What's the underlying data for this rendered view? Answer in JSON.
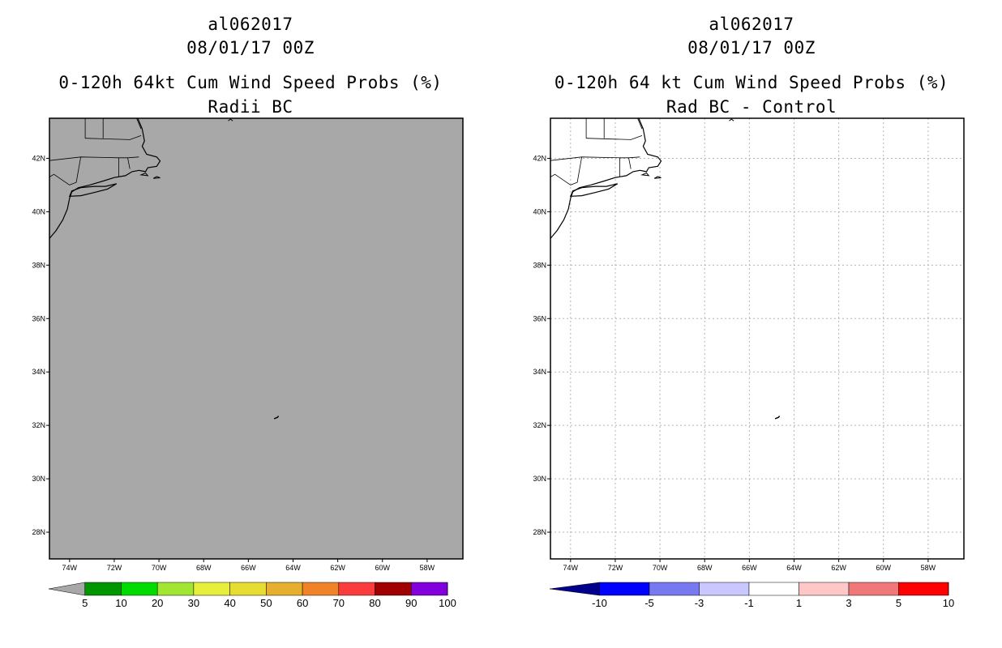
{
  "panels": [
    {
      "id": "left",
      "storm_id": "al062017",
      "datetime": "08/01/17 00Z",
      "title": "0-120h 64kt Cum Wind Speed Probs (%)",
      "subtitle": "Radii BC",
      "background": "#a8a8a8",
      "gridlines": false,
      "colorbar": {
        "colors": [
          "#009600",
          "#00dc00",
          "#a0e632",
          "#e6f03c",
          "#e6dc32",
          "#e6af2d",
          "#f08228",
          "#fa3c3c",
          "#a00000",
          "#8200dc"
        ],
        "end_colors": [
          "#a8a8a8",
          "#a8a8a8"
        ],
        "labels": [
          "5",
          "10",
          "20",
          "30",
          "40",
          "50",
          "60",
          "70",
          "80",
          "90",
          "100"
        ]
      }
    },
    {
      "id": "right",
      "storm_id": "al062017",
      "datetime": "08/01/17 00Z",
      "title": "0-120h 64 kt Cum Wind Speed Probs (%)",
      "subtitle": "Rad BC - Control",
      "background": "#ffffff",
      "gridlines": true,
      "colorbar": {
        "colors": [
          "#0000ff",
          "#7878f0",
          "#c8c8ff",
          "#ffffff",
          "#ffc8c8",
          "#f07878",
          "#ff0000"
        ],
        "end_colors": [
          "#00008c",
          "#8c0000"
        ],
        "labels": [
          "-10",
          "-5",
          "-3",
          "-1",
          "1",
          "3",
          "5",
          "10"
        ]
      }
    }
  ],
  "axes": {
    "lon_ticks": [
      -74,
      -72,
      -70,
      -68,
      -66,
      -64,
      -62,
      -60,
      -58
    ],
    "lon_labels": [
      "74W",
      "72W",
      "70W",
      "68W",
      "66W",
      "64W",
      "62W",
      "60W",
      "58W"
    ],
    "lat_ticks": [
      42,
      40,
      38,
      36,
      34,
      32,
      30,
      28
    ],
    "lat_labels": [
      "42N",
      "40N",
      "38N",
      "36N",
      "34N",
      "32N",
      "30N",
      "28N"
    ],
    "lon_range": [
      -74.9,
      -56.4
    ],
    "lat_range": [
      27.0,
      43.5
    ]
  },
  "map_features": {
    "coastline": [
      [
        -74.9,
        39.0
      ],
      [
        -74.6,
        39.3
      ],
      [
        -74.3,
        39.7
      ],
      [
        -74.1,
        40.1
      ],
      [
        -74.0,
        40.5
      ],
      [
        -73.9,
        40.75
      ],
      [
        -73.6,
        40.9
      ],
      [
        -73.1,
        41.0
      ],
      [
        -72.5,
        41.15
      ],
      [
        -72.0,
        41.28
      ],
      [
        -71.5,
        41.35
      ],
      [
        -71.2,
        41.5
      ],
      [
        -70.9,
        41.55
      ],
      [
        -70.6,
        41.5
      ],
      [
        -70.5,
        41.65
      ],
      [
        -70.1,
        41.7
      ],
      [
        -69.95,
        41.9
      ],
      [
        -70.1,
        42.05
      ],
      [
        -70.55,
        42.15
      ],
      [
        -70.75,
        42.45
      ],
      [
        -70.65,
        42.65
      ],
      [
        -70.75,
        43.1
      ],
      [
        -70.95,
        43.5
      ]
    ],
    "long_island": [
      [
        -74.0,
        40.58
      ],
      [
        -73.5,
        40.6
      ],
      [
        -72.9,
        40.72
      ],
      [
        -72.3,
        40.85
      ],
      [
        -71.9,
        41.05
      ],
      [
        -72.4,
        40.95
      ],
      [
        -72.9,
        40.95
      ],
      [
        -73.5,
        40.9
      ],
      [
        -73.9,
        40.78
      ]
    ],
    "nantucket": [
      [
        -70.25,
        41.25
      ],
      [
        -69.95,
        41.27
      ],
      [
        -70.1,
        41.32
      ],
      [
        -70.25,
        41.25
      ]
    ],
    "marthas_vineyard": [
      [
        -70.8,
        41.38
      ],
      [
        -70.5,
        41.35
      ],
      [
        -70.6,
        41.45
      ],
      [
        -70.8,
        41.38
      ]
    ],
    "bermuda": [
      [
        -64.85,
        32.25
      ],
      [
        -64.7,
        32.3
      ],
      [
        -64.65,
        32.35
      ]
    ],
    "state_borders": [
      [
        [
          -75.1,
          41.9
        ],
        [
          -73.5,
          42.05
        ],
        [
          -71.8,
          42.02
        ],
        [
          -71.4,
          42.02
        ],
        [
          -70.9,
          42.05
        ]
      ],
      [
        [
          -73.5,
          42.05
        ],
        [
          -73.7,
          41.1
        ],
        [
          -74.0,
          41.0
        ]
      ],
      [
        [
          -71.8,
          42.02
        ],
        [
          -71.8,
          41.32
        ]
      ],
      [
        [
          -71.4,
          42.02
        ],
        [
          -71.3,
          41.6
        ]
      ],
      [
        [
          -73.3,
          42.75
        ],
        [
          -71.3,
          42.7
        ],
        [
          -70.8,
          42.85
        ]
      ],
      [
        [
          -73.3,
          43.5
        ],
        [
          -73.3,
          42.75
        ]
      ],
      [
        [
          -72.5,
          43.5
        ],
        [
          -72.5,
          42.75
        ]
      ],
      [
        [
          -71.0,
          43.5
        ],
        [
          -70.8,
          43.1
        ]
      ],
      [
        [
          -74.9,
          41.3
        ],
        [
          -74.7,
          41.4
        ],
        [
          -74.0,
          41.0
        ]
      ]
    ],
    "north_mark": [
      [
        -66.9,
        43.4
      ],
      [
        -66.8,
        43.47
      ],
      [
        -66.7,
        43.4
      ]
    ]
  }
}
